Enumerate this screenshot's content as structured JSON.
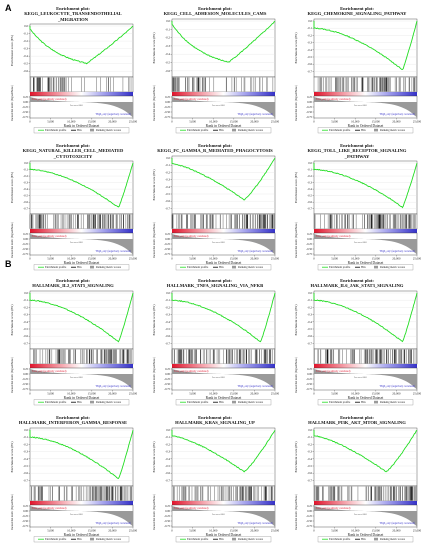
{
  "sections": [
    {
      "label": "A",
      "panels": [
        {
          "title_lines": [
            "Enrichment plot:",
            "KEGG_LEUKOCYTE_TRANSENDOTHELIAL",
            "_MIGRATION"
          ],
          "profile": "early_neg"
        },
        {
          "title_lines": [
            "Enrichment plot:",
            "KEGG_CELL_ADHESION_MOLECULES_CAMS"
          ],
          "profile": "early_neg"
        },
        {
          "title_lines": [
            "Enrichment plot:",
            "KEGG_CHEMOKINE_SIGNALING_PATHWAY"
          ],
          "profile": "late_neg"
        },
        {
          "title_lines": [
            "Enrichment plot:",
            "KEGG_NATURAL_KILLER_CELL_MEDIATED",
            "_CYTOTOXICITY"
          ],
          "profile": "late_neg"
        },
        {
          "title_lines": [
            "Enrichment plot:",
            "KEGG_FC_GAMMA_R_MEDIATED_PHAGOCYTOSIS"
          ],
          "profile": "mid_neg"
        },
        {
          "title_lines": [
            "Enrichment plot:",
            "KEGG_TOLL_LIKE_RECEPTOR_SIGNALING",
            "_PATHWAY"
          ],
          "profile": "late_neg"
        }
      ]
    },
    {
      "label": "B",
      "panels": [
        {
          "title_lines": [
            "Enrichment plot:",
            "HALLMARK_IL2_STAT5_SIGNALING"
          ],
          "profile": "late_neg"
        },
        {
          "title_lines": [
            "Enrichment plot:",
            "HALLMARK_TNFA_SIGNALING_VIA_NFKB"
          ],
          "profile": "late_neg"
        },
        {
          "title_lines": [
            "Enrichment plot:",
            "HALLMARK_IL6_JAK_STAT3_SIGNALING"
          ],
          "profile": "late_neg"
        },
        {
          "title_lines": [
            "Enrichment plot:",
            "HALLMARK_INTERFERON_GAMMA_RESPONSE"
          ],
          "profile": "late_neg"
        },
        {
          "title_lines": [
            "Enrichment plot:",
            "HALLMARK_KRAS_SIGNALING_UP"
          ],
          "profile": "mid_neg"
        },
        {
          "title_lines": [
            "Enrichment plot:",
            "HALLMARK_PI3K_AKT_MTOR_SIGNALING"
          ],
          "profile": "mid_neg"
        }
      ]
    }
  ],
  "chart_data": {
    "type": "line",
    "xlabel": "Rank in Ordered Dataset",
    "ylabel_es": "Enrichment score (ES)",
    "ylabel_rank": "Ranked list metric (Signal2Noise)",
    "xlim": [
      0,
      25000
    ],
    "x_ticks": [
      "0",
      "5,000",
      "10,000",
      "15,000",
      "20,000",
      "25,000"
    ],
    "es_ticks_early": [
      "0.0",
      "-0.1",
      "-0.2",
      "-0.3",
      "-0.4",
      "-0.5",
      "-0.6"
    ],
    "es_ticks_late": [
      "0.0",
      "-0.1",
      "-0.2",
      "-0.3",
      "-0.4",
      "-0.5",
      "-0.6",
      "-0.7"
    ],
    "rank_ticks": [
      "0.25",
      "0.00",
      "-0.25",
      "-0.50",
      "-0.75"
    ],
    "pos_label": "'Low_exp' (positively correlated)",
    "neg_label": "'High_exp' (negatively correlated)",
    "zero_cross": "Zero cross at 16800",
    "legend": [
      "Enrichment profile",
      "Hits",
      "Ranking metric scores"
    ],
    "colors": {
      "es": "#22dd22",
      "hits": "#000000",
      "pos": "#e0142c",
      "neg": "#3430c8",
      "metric": "#9a9a9a"
    }
  }
}
